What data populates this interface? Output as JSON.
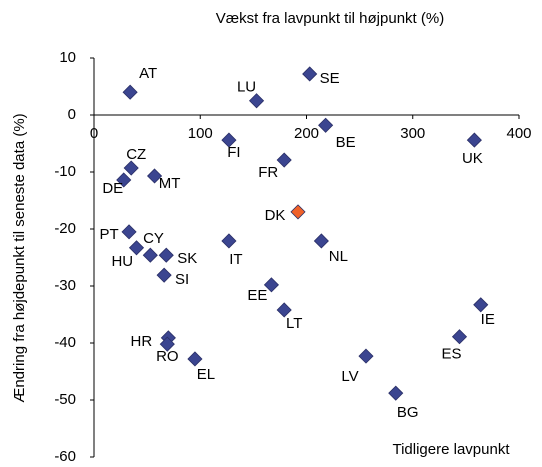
{
  "chart_data": {
    "type": "scatter",
    "x_label": "Vækst fra lavpunkt til højpunkt (%)",
    "y_label": "Ændring fra højdepunkt til seneste data (%)",
    "annotation": "Tidligere lavpunkt",
    "labels": [
      "AT",
      "LU",
      "SE",
      "BE",
      "FI",
      "UK",
      "FR",
      "CZ",
      "DE",
      "MT",
      "DK",
      "PT",
      "CY",
      "HU",
      "SK",
      "SI",
      "IT",
      "NL",
      "EE",
      "LT",
      "IE",
      "HR",
      "RO",
      "ES",
      "EL",
      "LV",
      "BG"
    ],
    "x": [
      34,
      153,
      203,
      218,
      127,
      358,
      179,
      35,
      28,
      57,
      192,
      33,
      40,
      53,
      68,
      66,
      127,
      214,
      167,
      179,
      364,
      70,
      69,
      344,
      95,
      256,
      284
    ],
    "y": [
      4,
      2.5,
      7.2,
      -1.8,
      -4.4,
      -4.4,
      -7.9,
      -9.3,
      -11.4,
      -10.7,
      -17,
      -20.5,
      -23.3,
      -24.6,
      -24.6,
      -28.1,
      -22.1,
      -22.1,
      -29.8,
      -34.2,
      -33.3,
      -39.1,
      -40.2,
      -38.9,
      -42.8,
      -42.3,
      -48.8
    ],
    "colors": [
      "#3b4590",
      "#3b4590",
      "#3b4590",
      "#3b4590",
      "#3b4590",
      "#3b4590",
      "#3b4590",
      "#3b4590",
      "#3b4590",
      "#3b4590",
      "#f0622a",
      "#3b4590",
      "#3b4590",
      "#3b4590",
      "#3b4590",
      "#3b4590",
      "#3b4590",
      "#3b4590",
      "#3b4590",
      "#3b4590",
      "#3b4590",
      "#3b4590",
      "#3b4590",
      "#3b4590",
      "#3b4590",
      "#3b4590",
      "#3b4590"
    ],
    "xlim": [
      0,
      400
    ],
    "xticks": [
      0,
      100,
      200,
      300,
      400
    ],
    "ylim": [
      -60,
      10
    ],
    "yticks": [
      -60,
      -50,
      -40,
      -30,
      -20,
      -10,
      0,
      10
    ],
    "grid": false
  }
}
